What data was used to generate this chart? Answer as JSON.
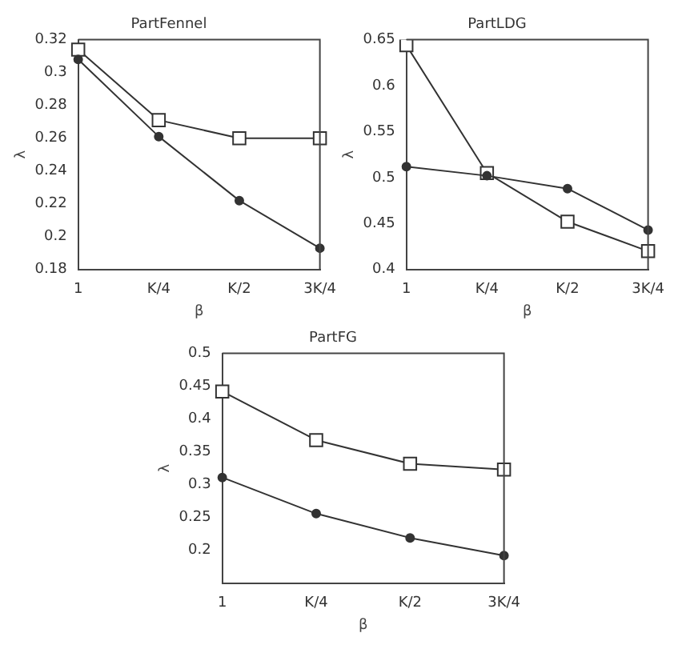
{
  "chart_data": [
    {
      "type": "line",
      "title": "PartFennel",
      "xlabel": "β",
      "ylabel": "λ",
      "categories": [
        "1",
        "K/4",
        "K/2",
        "3K/4"
      ],
      "ylim": [
        0.18,
        0.32
      ],
      "yticks": [
        0.18,
        0.2,
        0.22,
        0.24,
        0.26,
        0.28,
        0.3,
        0.32
      ],
      "grid": false,
      "legend": false,
      "series": [
        {
          "color": "#333333",
          "marker": "circle",
          "values": [
            0.308,
            0.261,
            0.222,
            0.193
          ]
        },
        {
          "color": "#333333",
          "marker": "square",
          "values": [
            0.314,
            0.271,
            0.26,
            0.26
          ]
        }
      ]
    },
    {
      "type": "line",
      "title": "PartLDG",
      "xlabel": "β",
      "ylabel": "λ",
      "categories": [
        "1",
        "K/4",
        "K/2",
        "3K/4"
      ],
      "ylim": [
        0.4,
        0.65
      ],
      "yticks": [
        0.4,
        0.45,
        0.5,
        0.55,
        0.6,
        0.65
      ],
      "grid": false,
      "legend": false,
      "series": [
        {
          "color": "#333333",
          "marker": "circle",
          "values": [
            0.512,
            0.502,
            0.488,
            0.443
          ]
        },
        {
          "color": "#333333",
          "marker": "square",
          "values": [
            0.644,
            0.505,
            0.452,
            0.42
          ]
        }
      ]
    },
    {
      "type": "line",
      "title": "PartFG",
      "xlabel": "β",
      "ylabel": "λ",
      "categories": [
        "1",
        "K/4",
        "K/2",
        "3K/4"
      ],
      "ylim": [
        0.15,
        0.5
      ],
      "yticks": [
        0.2,
        0.25,
        0.3,
        0.35,
        0.4,
        0.45,
        0.5
      ],
      "grid": false,
      "legend": false,
      "series": [
        {
          "color": "#333333",
          "marker": "circle",
          "values": [
            0.311,
            0.256,
            0.219,
            0.192
          ]
        },
        {
          "color": "#333333",
          "marker": "square",
          "values": [
            0.442,
            0.368,
            0.332,
            0.323
          ]
        }
      ]
    }
  ]
}
